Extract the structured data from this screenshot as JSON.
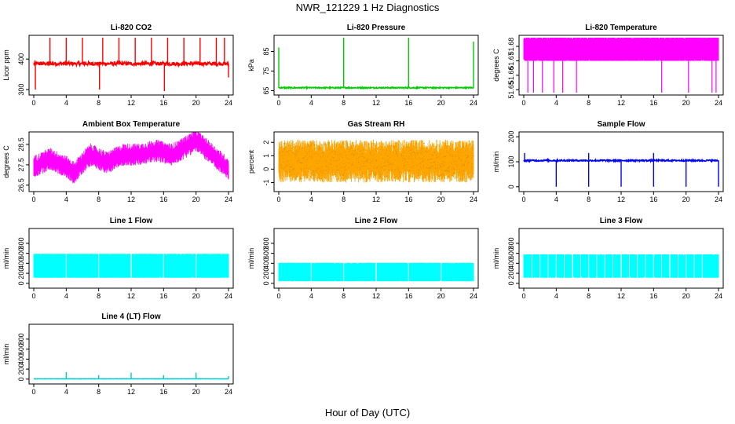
{
  "page": {
    "title": "NWR_121229  1 Hz Diagnostics",
    "xlabel": "Hour of Day (UTC)"
  },
  "chart_data": [
    {
      "type": "line",
      "title": "Li-820 CO2",
      "ylabel": "Licor ppm",
      "color": "#ff0000",
      "ylim": [
        290,
        470
      ],
      "yticks": [
        300,
        400
      ],
      "ytick_labels": [
        "300",
        "400"
      ],
      "xlim": [
        0,
        24
      ],
      "xticks": [
        0,
        4,
        8,
        12,
        16,
        20,
        24
      ],
      "xtick_labels": [
        "0",
        "4",
        "8",
        "12",
        "16",
        "20",
        "24"
      ],
      "base": 385,
      "noise": 6,
      "spikes_up": [
        [
          2,
          470
        ],
        [
          4,
          470
        ],
        [
          6,
          470
        ],
        [
          8.5,
          470
        ],
        [
          10.5,
          470
        ],
        [
          12.5,
          470
        ],
        [
          14.5,
          470
        ],
        [
          16.5,
          470
        ],
        [
          18.5,
          470
        ],
        [
          20.5,
          470
        ],
        [
          22.5,
          470
        ],
        [
          23.5,
          470
        ]
      ],
      "spikes_down": [
        [
          0.2,
          300
        ],
        [
          8.1,
          300
        ],
        [
          16.1,
          295
        ],
        [
          24,
          340
        ]
      ]
    },
    {
      "type": "line",
      "title": "Li-820 Pressure",
      "ylabel": "kPa",
      "color": "#00cc00",
      "ylim": [
        64,
        92
      ],
      "yticks": [
        65,
        75,
        85
      ],
      "ytick_labels": [
        "65",
        "75",
        "85"
      ],
      "xlim": [
        0,
        24
      ],
      "xticks": [
        0,
        4,
        8,
        12,
        16,
        20,
        24
      ],
      "xtick_labels": [
        "0",
        "4",
        "8",
        "12",
        "16",
        "20",
        "24"
      ],
      "base": 66.5,
      "noise": 0.3,
      "spikes_up": [
        [
          0,
          87
        ],
        [
          8,
          92
        ],
        [
          16,
          92
        ],
        [
          24,
          90
        ]
      ],
      "spikes_down": []
    },
    {
      "type": "band",
      "title": "Li-820 Temperature",
      "ylabel": "degrees C",
      "color": "#ff00ff",
      "ylim": [
        51.648,
        51.686
      ],
      "yticks": [
        51.65,
        51.66,
        51.67,
        51.68
      ],
      "ytick_labels": [
        "51.65",
        "51.66",
        "51.67",
        "51.68"
      ],
      "xlim": [
        0,
        24
      ],
      "xticks": [
        0,
        4,
        8,
        12,
        16,
        20,
        24
      ],
      "xtick_labels": [
        "0",
        "4",
        "8",
        "12",
        "16",
        "20",
        "24"
      ],
      "band_low": 51.67,
      "band_high": 51.686,
      "dips": [
        [
          0.5,
          51.648
        ],
        [
          1.2,
          51.648
        ],
        [
          2.3,
          51.648
        ],
        [
          3.7,
          51.648
        ],
        [
          4.8,
          51.648
        ],
        [
          6.5,
          51.648
        ],
        [
          17,
          51.648
        ],
        [
          20.3,
          51.648
        ],
        [
          23.2,
          51.648
        ],
        [
          23.7,
          51.648
        ]
      ]
    },
    {
      "type": "band",
      "title": "Ambient Box Temperature",
      "ylabel": "degrees C",
      "color": "#ff00ff",
      "ylim": [
        26.3,
        29
      ],
      "yticks": [
        26.5,
        27.5,
        28.5
      ],
      "ytick_labels": [
        "26.5",
        "27.5",
        "28.5"
      ],
      "xlim": [
        0,
        24
      ],
      "xticks": [
        0,
        4,
        8,
        12,
        16,
        20,
        24
      ],
      "xtick_labels": [
        "0",
        "4",
        "8",
        "12",
        "16",
        "20",
        "24"
      ],
      "trend": [
        [
          0,
          27.4
        ],
        [
          2,
          27.8
        ],
        [
          4,
          27.4
        ],
        [
          5,
          27.1
        ],
        [
          6,
          27.6
        ],
        [
          7,
          28.0
        ],
        [
          9,
          27.6
        ],
        [
          11,
          28.0
        ],
        [
          13,
          28.0
        ],
        [
          15,
          28.2
        ],
        [
          17,
          28.0
        ],
        [
          18,
          28.2
        ],
        [
          20,
          28.7
        ],
        [
          22,
          28.0
        ],
        [
          24,
          27.3
        ]
      ],
      "spread": 0.55
    },
    {
      "type": "band",
      "title": "Gas Stream RH",
      "ylabel": "percent",
      "color": "#ffa500",
      "color2": "#b8860b",
      "ylim": [
        -1.5,
        2.6
      ],
      "yticks": [
        -1,
        0,
        1,
        2
      ],
      "ytick_labels": [
        "-1",
        "0",
        "1",
        "2"
      ],
      "xlim": [
        0,
        24
      ],
      "xticks": [
        0,
        4,
        8,
        12,
        16,
        20,
        24
      ],
      "xtick_labels": [
        "0",
        "4",
        "8",
        "12",
        "16",
        "20",
        "24"
      ],
      "trend": [
        [
          0,
          0.6
        ],
        [
          24,
          0.6
        ]
      ],
      "spread": 1.6
    },
    {
      "type": "line",
      "title": "Sample Flow",
      "ylabel": "ml/min",
      "color": "#0000ff",
      "ylim": [
        -10,
        210
      ],
      "yticks": [
        0,
        100,
        200
      ],
      "ytick_labels": [
        "0",
        "100",
        "200"
      ],
      "xlim": [
        0,
        24
      ],
      "xticks": [
        0,
        4,
        8,
        12,
        16,
        20,
        24
      ],
      "xtick_labels": [
        "0",
        "4",
        "8",
        "12",
        "16",
        "20",
        "24"
      ],
      "base": 105,
      "noise": 3,
      "spikes_up": [
        [
          0.1,
          135
        ],
        [
          8,
          135
        ],
        [
          16,
          135
        ]
      ],
      "spikes_down": [
        [
          4,
          0
        ],
        [
          8,
          0
        ],
        [
          12,
          0
        ],
        [
          16,
          0
        ],
        [
          20,
          0
        ],
        [
          24,
          0
        ]
      ]
    },
    {
      "type": "band",
      "title": "Line 1 Flow",
      "ylabel": "ml/min",
      "color": "#00ffff",
      "ylim": [
        -50,
        1050
      ],
      "yticks": [
        0,
        200,
        400,
        600,
        800
      ],
      "ytick_labels": [
        "0",
        "200",
        "400",
        "600",
        "800"
      ],
      "xlim": [
        0,
        24
      ],
      "xticks": [
        0,
        4,
        8,
        12,
        16,
        20,
        24
      ],
      "xtick_labels": [
        "0",
        "4",
        "8",
        "12",
        "16",
        "20",
        "24"
      ],
      "band_low": 110,
      "band_high": 590,
      "gaps": [
        4,
        8,
        12,
        16,
        20
      ]
    },
    {
      "type": "band",
      "title": "Line 2 Flow",
      "ylabel": "ml/min",
      "color": "#00ffff",
      "ylim": [
        -50,
        1050
      ],
      "yticks": [
        0,
        200,
        400,
        600,
        800
      ],
      "ytick_labels": [
        "0",
        "200",
        "400",
        "600",
        "800"
      ],
      "xlim": [
        0,
        24
      ],
      "xticks": [
        0,
        4,
        8,
        12,
        16,
        20,
        24
      ],
      "xtick_labels": [
        "0",
        "4",
        "8",
        "12",
        "16",
        "20",
        "24"
      ],
      "band_low": 40,
      "band_high": 410,
      "gaps": [
        4,
        8,
        12,
        16,
        20
      ]
    },
    {
      "type": "band",
      "title": "Line 3 Flow",
      "ylabel": "ml/min",
      "color": "#00ffff",
      "ylim": [
        -50,
        1050
      ],
      "yticks": [
        0,
        200,
        400,
        600,
        800
      ],
      "ytick_labels": [
        "0",
        "200",
        "400",
        "600",
        "800"
      ],
      "xlim": [
        0,
        24
      ],
      "xticks": [
        0,
        4,
        8,
        12,
        16,
        20,
        24
      ],
      "xtick_labels": [
        "0",
        "4",
        "8",
        "12",
        "16",
        "20",
        "24"
      ],
      "band_low": 110,
      "band_high": 580,
      "gaps": [
        1,
        2,
        3,
        4,
        5,
        6,
        7,
        8,
        9,
        10,
        11,
        12,
        13,
        14,
        15,
        16,
        17,
        18,
        19,
        20,
        21,
        22
      ]
    },
    {
      "type": "line",
      "title": "Line 4 (LT) Flow",
      "ylabel": "ml/min",
      "color": "#00cccc",
      "ylim": [
        -50,
        1050
      ],
      "yticks": [
        0,
        200,
        400,
        600,
        800
      ],
      "ytick_labels": [
        "0",
        "200",
        "400",
        "600",
        "800"
      ],
      "xlim": [
        0,
        24
      ],
      "xticks": [
        0,
        4,
        8,
        12,
        16,
        20,
        24
      ],
      "xtick_labels": [
        "0",
        "4",
        "8",
        "12",
        "16",
        "20",
        "24"
      ],
      "base": 5,
      "noise": 2,
      "spikes_up": [
        [
          4,
          140
        ],
        [
          8,
          80
        ],
        [
          12,
          130
        ],
        [
          16,
          80
        ],
        [
          20,
          130
        ],
        [
          24,
          60
        ]
      ],
      "spikes_down": []
    }
  ]
}
